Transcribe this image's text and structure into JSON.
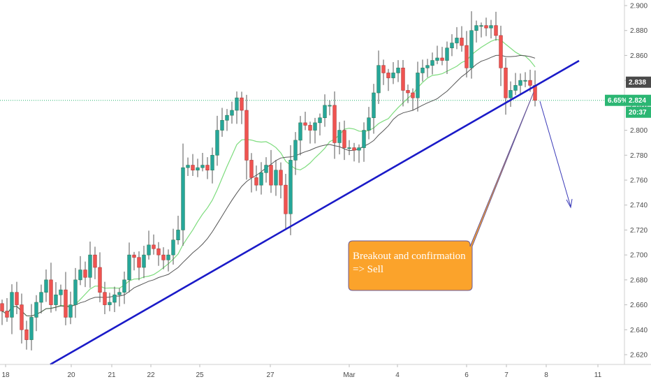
{
  "chart_data": {
    "type": "candlestick",
    "y_axis": {
      "ticks": [
        "2.900",
        "2.880",
        "2.860",
        "2.840",
        "2.820",
        "2.800",
        "2.780",
        "2.760",
        "2.740",
        "2.720",
        "2.700",
        "2.680",
        "2.660",
        "2.640",
        "2.620"
      ],
      "range": [
        2.607,
        2.905
      ],
      "position": "right"
    },
    "x_axis": {
      "ticks": [
        "18",
        "20",
        "21",
        "22",
        "25",
        "27",
        "Mar",
        "4",
        "6",
        "7",
        "8",
        "11"
      ]
    },
    "price_tags": {
      "upper": "2.838",
      "last_percent": "6.65%",
      "last_price": "2.824",
      "countdown": "20:37"
    },
    "current_price": 2.824,
    "trendline": {
      "from": {
        "date": "19 Feb",
        "price": 2.614
      },
      "to": {
        "date": "9 Mar",
        "price": 2.852
      }
    },
    "projection": {
      "from": {
        "date": "7 Mar",
        "price": 2.822
      },
      "to": {
        "date": "10 Mar",
        "price": 2.735
      }
    },
    "annotation": {
      "line1": "Breakout and confirmation",
      "line2": "=> Sell"
    },
    "colors": {
      "up": "#26a69a",
      "down": "#ef5350",
      "trendline": "#1a1ac8",
      "ma_fast": "#7ddc7d",
      "ma_slow": "#555555",
      "callout_fill": "#fba32b",
      "callout_border": "#6a5a9a",
      "price_line": "#2bb673"
    },
    "approx_closes": [
      2.655,
      2.65,
      2.67,
      2.66,
      2.64,
      2.632,
      2.65,
      2.662,
      2.67,
      2.68,
      2.66,
      2.668,
      2.672,
      2.65,
      2.66,
      2.68,
      2.688,
      2.682,
      2.7,
      2.69,
      2.67,
      2.66,
      2.662,
      2.668,
      2.67,
      2.68,
      2.7,
      2.698,
      2.69,
      2.7,
      2.708,
      2.705,
      2.7,
      2.696,
      2.7,
      2.712,
      2.72,
      2.77,
      2.772,
      2.768,
      2.77,
      2.772,
      2.768,
      2.78,
      2.8,
      2.808,
      2.812,
      2.816,
      2.826,
      2.816,
      2.776,
      2.762,
      2.756,
      2.766,
      2.772,
      2.756,
      2.768,
      2.756,
      2.733,
      2.776,
      2.792,
      2.806,
      2.804,
      2.8,
      2.806,
      2.81,
      2.82,
      2.82,
      2.79,
      2.8,
      2.786,
      2.786,
      2.784,
      2.786,
      2.8,
      2.81,
      2.83,
      2.852,
      2.846,
      2.842,
      2.846,
      2.85,
      2.832,
      2.83,
      2.826,
      2.846,
      2.85,
      2.852,
      2.856,
      2.858,
      2.856,
      2.866,
      2.87,
      2.874,
      2.868,
      2.85,
      2.88,
      2.884,
      2.884,
      2.882,
      2.884,
      2.876,
      2.85,
      2.826,
      2.832,
      2.836,
      2.84,
      2.84,
      2.836,
      2.824
    ]
  }
}
